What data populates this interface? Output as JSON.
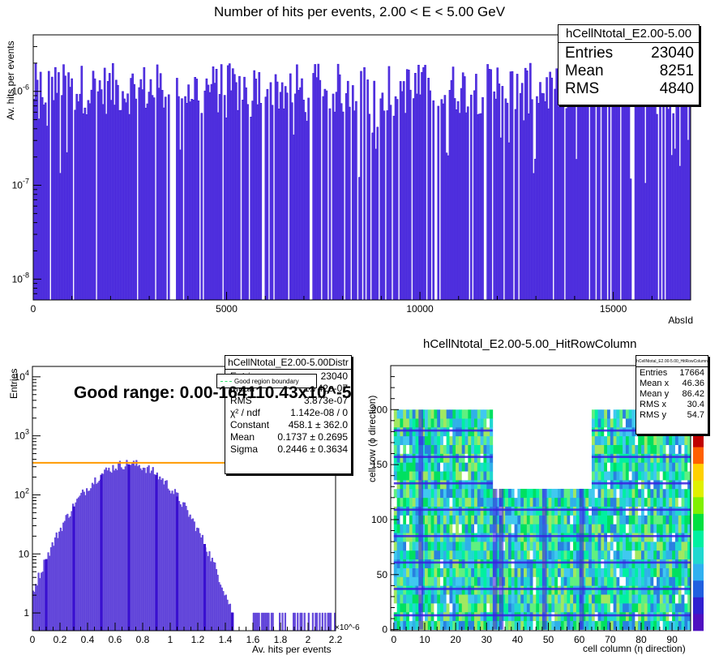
{
  "chart_data": [
    {
      "type": "bar",
      "title": "Number of hits per events, 2.00 < E < 5.00 GeV",
      "xlabel": "AbsId",
      "ylabel": "Av. hits per events",
      "xlim": [
        0,
        17000
      ],
      "ylim": [
        6e-09,
        4e-06
      ],
      "yscale": "log",
      "xticks": [
        "0",
        "5000",
        "10000",
        "15000"
      ],
      "yticks": [
        "10^-8",
        "10^-7",
        "10^-6"
      ],
      "color": "#3a16d9",
      "stats": {
        "name": "hCellNtotal_E2.00-5.00",
        "rows": [
          [
            "Entries",
            "23040"
          ],
          [
            "Mean",
            "8251"
          ],
          [
            "RMS",
            "4840"
          ]
        ]
      }
    },
    {
      "type": "bar",
      "title": "",
      "xlabel": "Av. hits per events",
      "ylabel": "Entries",
      "xlim": [
        0,
        2.2e-06
      ],
      "ylim": [
        0.5,
        15000
      ],
      "yscale": "log",
      "x_multiplier": "×10^-6",
      "xticks": [
        "0",
        "0.2",
        "0.4",
        "0.6",
        "0.8",
        "1",
        "1.2",
        "1.4",
        "1.6",
        "1.8",
        "2",
        "2.2"
      ],
      "yticks": [
        "1",
        "10",
        "10^2",
        "10^3",
        "10^4"
      ],
      "color": "#6a4fdc",
      "annotation": "Good range: 0.00-164110.43x10^-5",
      "legend": {
        "label": "Good region boundary",
        "color": "#2ee06a",
        "style": "dashed"
      },
      "fit_line": {
        "y": 350,
        "color": "#ff9900"
      },
      "stats": {
        "name": "hCellNtotal_E2.00-5.00Distr",
        "rows": [
          [
            "Entries",
            "23040"
          ],
          [
            "Mean",
            "1.742e-07"
          ],
          [
            "RMS",
            "3.873e-07"
          ],
          [
            "χ² / ndf",
            "1.142e-08 / 0"
          ],
          [
            "Constant",
            "458.1 ± 362.0"
          ],
          [
            "Mean",
            "0.1737 ± 0.2695"
          ],
          [
            "Sigma",
            "0.2446 ± 0.3634"
          ]
        ]
      },
      "peak_x": 0.7,
      "peak_y": 330
    },
    {
      "type": "heatmap",
      "title": "hCellNtotal_E2.00-5.00_HitRowColumn",
      "xlabel": "cell column (η direction)",
      "ylabel": "cell row (ϕ direction)",
      "xlim": [
        -1,
        96
      ],
      "ylim": [
        -1,
        240
      ],
      "xticks": [
        "0",
        "10",
        "20",
        "30",
        "40",
        "50",
        "60",
        "70",
        "80",
        "90"
      ],
      "yticks": [
        "0",
        "50",
        "100",
        "150",
        "200"
      ],
      "regions": [
        {
          "x": [
            0,
            32
          ],
          "y": [
            0,
            200
          ]
        },
        {
          "x": [
            32,
            64
          ],
          "y": [
            0,
            128
          ]
        },
        {
          "x": [
            64,
            96
          ],
          "y": [
            0,
            200
          ]
        }
      ],
      "stats": {
        "name": "hCellNtotal_E2.00-5.00_HitRowColumn",
        "rows": [
          [
            "Entries",
            "17664"
          ],
          [
            "Mean x",
            "46.36"
          ],
          [
            "Mean y",
            "86.42"
          ],
          [
            "RMS x",
            "30.4"
          ],
          [
            "RMS y",
            "54.7"
          ]
        ]
      }
    }
  ]
}
